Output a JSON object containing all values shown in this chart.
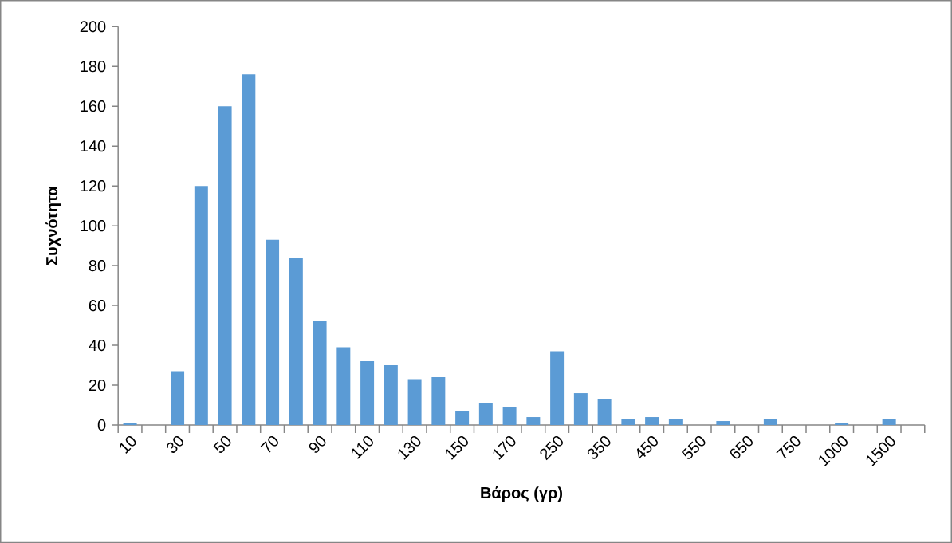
{
  "chart_data": {
    "type": "bar",
    "xlabel": "Βάρος (γρ)",
    "ylabel": "Συχνότητα",
    "categories": [
      "10",
      null,
      "30",
      null,
      "50",
      null,
      "70",
      null,
      "90",
      null,
      "110",
      null,
      "130",
      null,
      "150",
      null,
      "170",
      null,
      "250",
      null,
      "350",
      null,
      "450",
      null,
      "550",
      null,
      "650",
      null,
      "750",
      null,
      "1000",
      null,
      "1500",
      null
    ],
    "values": [
      1,
      0,
      27,
      120,
      160,
      176,
      93,
      84,
      52,
      39,
      32,
      30,
      23,
      24,
      7,
      11,
      9,
      4,
      37,
      16,
      13,
      3,
      4,
      3,
      0,
      2,
      0,
      3,
      0,
      0,
      1,
      0,
      3,
      0
    ],
    "color": "#5b9bd5",
    "ylim": [
      0,
      200
    ],
    "yticks": [
      0,
      20,
      40,
      60,
      80,
      100,
      120,
      140,
      160,
      180,
      200
    ],
    "grid": false
  }
}
